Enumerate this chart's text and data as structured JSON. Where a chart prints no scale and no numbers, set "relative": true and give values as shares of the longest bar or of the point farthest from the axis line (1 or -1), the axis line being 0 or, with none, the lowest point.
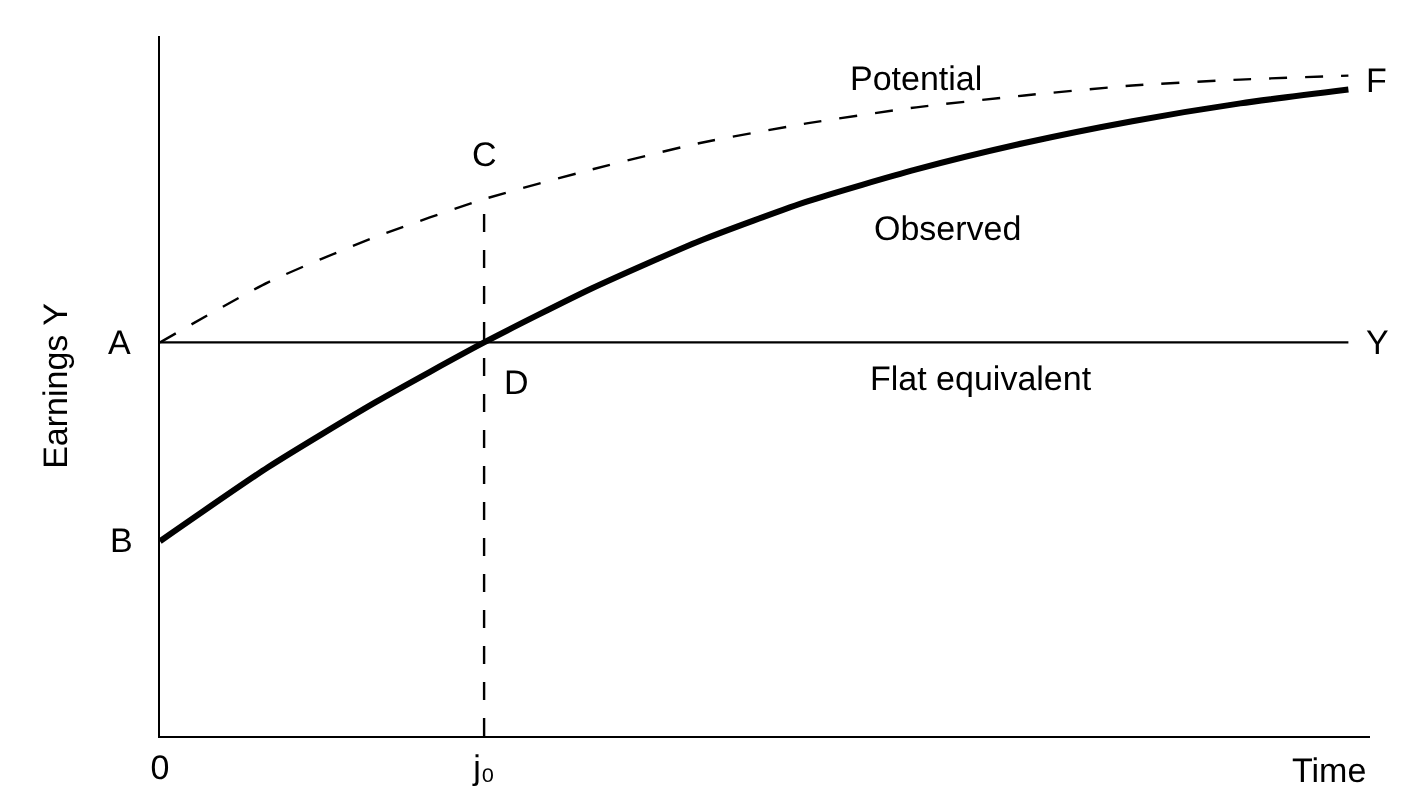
{
  "chart_data": {
    "type": "line",
    "relative": true,
    "xlabel": "Time",
    "ylabel": "Earnings Y",
    "categories": [
      "0",
      null,
      null,
      "j₀",
      null,
      null,
      null,
      null,
      null,
      null,
      null,
      null
    ],
    "series": [
      {
        "name": "Potential",
        "color": "#000000",
        "line_style": "dashed",
        "values": [
          0.596,
          0.687,
          0.756,
          0.813,
          0.858,
          0.898,
          0.928,
          0.952,
          0.97,
          0.985,
          0.994,
          1.0
        ]
      },
      {
        "name": "Observed",
        "color": "#000000",
        "line_style": "solid",
        "values": [
          0.295,
          0.407,
          0.506,
          0.596,
          0.678,
          0.75,
          0.81,
          0.858,
          0.898,
          0.931,
          0.958,
          0.979
        ]
      },
      {
        "name": "Flat equivalent",
        "color": "#000000",
        "line_style": "solid",
        "values": [
          0.596,
          0.596,
          0.596,
          0.596,
          0.596,
          0.596,
          0.596,
          0.596,
          0.596,
          0.596,
          0.596,
          0.596
        ]
      }
    ],
    "ref_lines": [
      {
        "axis": "x",
        "value": "j₀",
        "line_style": "dashed",
        "color": "#000000"
      }
    ],
    "annotations": [
      {
        "text": "A",
        "x": "0",
        "y": 0.596
      },
      {
        "text": "B",
        "x": "0",
        "y": 0.295
      },
      {
        "text": "C",
        "x": "j₀",
        "y": 0.813
      },
      {
        "text": "D",
        "x": "j₀",
        "y": 0.596
      },
      "F",
      "Y"
    ],
    "legend": false
  }
}
